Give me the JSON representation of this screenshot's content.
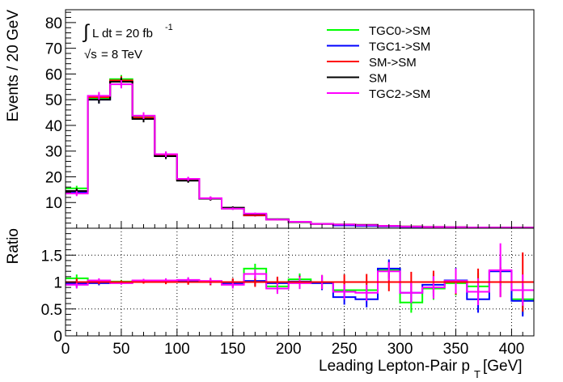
{
  "chart_data": [
    {
      "type": "histogram",
      "panel": "main",
      "ylabel": "Events / 20 GeV",
      "xlim": [
        0,
        420
      ],
      "ylim": [
        0,
        85
      ],
      "y_ticks": [
        10,
        20,
        30,
        40,
        50,
        60,
        70,
        80
      ],
      "grid": false,
      "legend_position": "top-right",
      "annotations": {
        "lumi_integral": "∫",
        "lumi_text": "L dt = 20 fb",
        "lumi_sup": "-1",
        "energy_sqrt": "√s",
        "energy_text": " = 8 TeV"
      },
      "bin_edges": [
        0,
        20,
        40,
        60,
        80,
        100,
        120,
        140,
        160,
        180,
        200,
        220,
        240,
        260,
        280,
        300,
        320,
        340,
        360,
        380,
        400,
        420
      ],
      "series": [
        {
          "name": "TGC0->SM",
          "color": "#00ff00",
          "values": [
            15.5,
            50.5,
            58.0,
            43.5,
            28.5,
            18.8,
            11.5,
            7.6,
            5.4,
            3.5,
            2.4,
            1.7,
            1.3,
            1.1,
            0.8,
            0.55,
            0.45,
            0.35,
            0.3,
            0.25,
            0.2
          ],
          "errors": [
            1.0,
            1.5,
            1.6,
            1.3,
            1.1,
            0.8,
            0.7,
            0.5,
            0.4,
            0.3,
            0.25,
            0.2,
            0.15,
            0.15,
            0.1,
            0.1,
            0.1,
            0.08,
            0.07,
            0.06,
            0.06
          ]
        },
        {
          "name": "TGC1->SM",
          "color": "#0000ff",
          "values": [
            14.0,
            50.0,
            57.0,
            43.0,
            28.5,
            19.0,
            11.5,
            7.8,
            5.0,
            3.4,
            2.4,
            1.7,
            1.1,
            0.9,
            0.7,
            0.5,
            0.42,
            0.33,
            0.28,
            0.24,
            0.2
          ],
          "errors": [
            1.0,
            1.5,
            1.6,
            1.3,
            1.1,
            0.8,
            0.7,
            0.5,
            0.4,
            0.3,
            0.25,
            0.2,
            0.15,
            0.15,
            0.1,
            0.1,
            0.1,
            0.08,
            0.07,
            0.06,
            0.06
          ]
        },
        {
          "name": "SM->SM",
          "color": "#ff0000",
          "values": [
            14.5,
            51.0,
            57.5,
            43.0,
            28.5,
            18.7,
            11.5,
            7.9,
            5.0,
            3.4,
            2.4,
            1.7,
            1.45,
            1.3,
            0.9,
            0.65,
            0.5,
            0.4,
            0.33,
            0.27,
            0.23
          ],
          "errors": [
            1.0,
            1.5,
            1.6,
            1.3,
            1.1,
            0.8,
            0.7,
            0.5,
            0.4,
            0.3,
            0.25,
            0.2,
            0.15,
            0.15,
            0.1,
            0.1,
            0.1,
            0.08,
            0.07,
            0.06,
            0.06
          ]
        },
        {
          "name": "SM",
          "color": "#000000",
          "values": [
            14.5,
            50.0,
            57.0,
            42.5,
            28.0,
            18.5,
            11.5,
            8.0,
            5.5,
            3.5,
            2.4,
            1.7,
            1.45,
            1.3,
            0.9,
            0.65,
            0.5,
            0.4,
            0.33,
            0.27,
            0.23
          ],
          "errors": [
            1.0,
            1.5,
            1.6,
            1.3,
            1.1,
            0.8,
            0.7,
            0.5,
            0.4,
            0.3,
            0.25,
            0.2,
            0.15,
            0.15,
            0.1,
            0.1,
            0.1,
            0.08,
            0.07,
            0.06,
            0.06
          ]
        },
        {
          "name": "TGC2->SM",
          "color": "#ff00ff",
          "values": [
            13.5,
            51.5,
            56.0,
            43.8,
            28.8,
            19.2,
            11.7,
            7.6,
            5.7,
            3.4,
            2.5,
            1.7,
            1.4,
            1.2,
            0.9,
            0.6,
            0.48,
            0.38,
            0.3,
            0.28,
            0.22
          ],
          "errors": [
            1.0,
            1.5,
            1.6,
            1.3,
            1.1,
            0.8,
            0.7,
            0.5,
            0.4,
            0.3,
            0.25,
            0.2,
            0.15,
            0.15,
            0.1,
            0.1,
            0.1,
            0.08,
            0.07,
            0.06,
            0.06
          ]
        }
      ]
    },
    {
      "type": "histogram",
      "panel": "ratio",
      "xlabel_main": "Leading Lepton-Pair p",
      "xlabel_sub": "T",
      "xlabel_unit": " [GeV]",
      "ylabel": "Ratio",
      "xlim": [
        0,
        420
      ],
      "ylim": [
        0,
        2
      ],
      "x_ticks": [
        0,
        50,
        100,
        150,
        200,
        250,
        300,
        350,
        400
      ],
      "y_ticks": [
        0,
        0.5,
        1,
        1.5
      ],
      "y_tick_labels": [
        "0",
        "0.5",
        "1",
        "1.5"
      ],
      "grid": true,
      "reference_line": 1,
      "bin_edges": [
        0,
        20,
        40,
        60,
        80,
        100,
        120,
        140,
        160,
        180,
        200,
        220,
        240,
        260,
        280,
        300,
        320,
        340,
        360,
        380,
        400,
        420
      ],
      "series": [
        {
          "name": "TGC0->SM",
          "color": "#00ff00",
          "values": [
            1.07,
            1.01,
            1.01,
            1.02,
            1.01,
            1.02,
            1.0,
            0.98,
            1.25,
            0.92,
            1.05,
            1.0,
            0.85,
            0.85,
            1.22,
            0.62,
            0.88,
            0.98,
            0.92,
            1.0,
            0.68
          ],
          "errors": [
            0.07,
            0.04,
            0.03,
            0.03,
            0.04,
            0.05,
            0.06,
            0.07,
            0.09,
            0.1,
            0.11,
            0.13,
            0.14,
            0.15,
            0.17,
            0.19,
            0.21,
            0.23,
            0.25,
            0.27,
            0.29
          ]
        },
        {
          "name": "TGC1->SM",
          "color": "#0000ff",
          "values": [
            0.97,
            0.98,
            0.99,
            1.01,
            1.01,
            1.02,
            1.0,
            0.98,
            1.02,
            0.98,
            1.01,
            0.98,
            0.72,
            0.68,
            1.25,
            0.8,
            0.95,
            1.03,
            0.68,
            1.2,
            0.65
          ],
          "errors": [
            0.07,
            0.04,
            0.03,
            0.03,
            0.04,
            0.05,
            0.06,
            0.07,
            0.09,
            0.1,
            0.11,
            0.13,
            0.14,
            0.15,
            0.17,
            0.19,
            0.21,
            0.23,
            0.25,
            0.27,
            0.29
          ]
        },
        {
          "name": "SM->SM",
          "color": "#ff0000",
          "values": [
            1,
            1,
            1,
            1,
            1,
            1,
            1,
            1,
            1,
            1,
            1,
            1,
            1,
            1,
            1,
            1,
            1,
            1,
            1,
            1,
            1
          ],
          "errors": [
            0.07,
            0.04,
            0.03,
            0.03,
            0.04,
            0.05,
            0.06,
            0.07,
            0.09,
            0.1,
            0.11,
            0.13,
            0.14,
            0.15,
            0.17,
            0.19,
            0.21,
            0.23,
            0.25,
            0.28,
            0.55
          ]
        },
        {
          "name": "TGC2->SM",
          "color": "#ff00ff",
          "values": [
            0.95,
            1.03,
            0.98,
            1.03,
            1.03,
            1.04,
            1.02,
            0.95,
            1.15,
            0.88,
            0.98,
            1.0,
            0.82,
            0.8,
            1.2,
            0.8,
            0.9,
            1.02,
            0.82,
            1.22,
            0.85
          ],
          "errors": [
            0.07,
            0.04,
            0.03,
            0.03,
            0.04,
            0.05,
            0.06,
            0.07,
            0.09,
            0.1,
            0.11,
            0.13,
            0.14,
            0.15,
            0.17,
            0.19,
            0.21,
            0.23,
            0.25,
            0.5,
            0.29
          ]
        }
      ]
    }
  ]
}
